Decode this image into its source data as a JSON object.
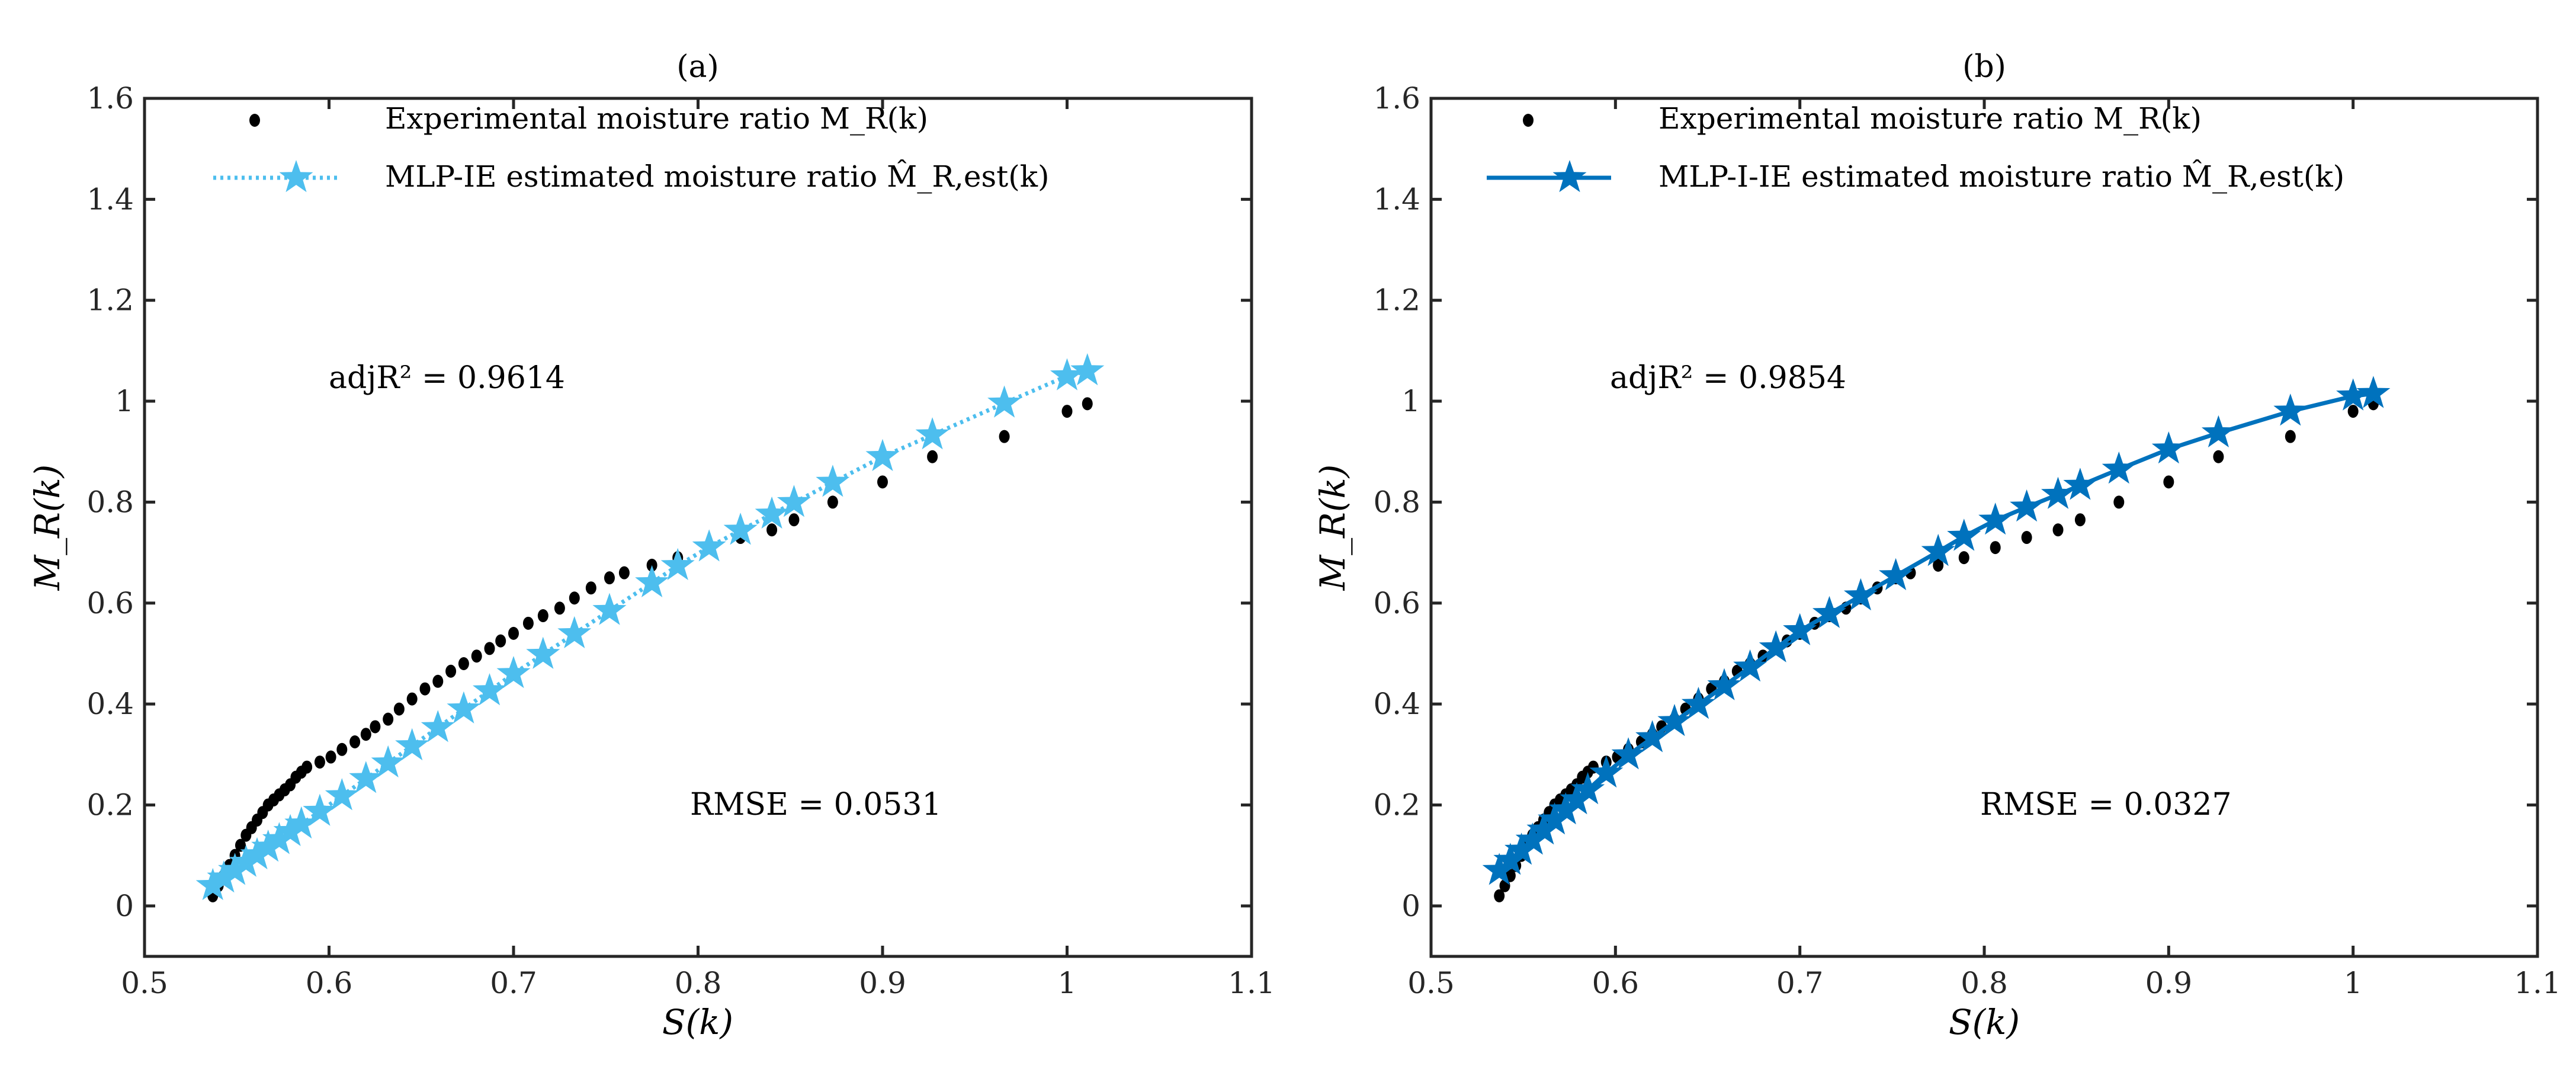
{
  "chart_data": [
    {
      "type": "scatter",
      "title": "(a)",
      "xlabel": "S(k)",
      "ylabel": "M_R(k)",
      "xlim": [
        0.5,
        1.1
      ],
      "ylim": [
        -0.1,
        1.6
      ],
      "xticks": [
        "0.5",
        "0.6",
        "0.7",
        "0.8",
        "0.9",
        "1",
        "1.1"
      ],
      "yticks": [
        "0",
        "0.2",
        "0.4",
        "0.6",
        "0.8",
        "1",
        "1.2",
        "1.4",
        "1.6"
      ],
      "grid": false,
      "legend_position": "top",
      "annotations": {
        "adj": "adjR² = 0.9614",
        "rmse": "RMSE = 0.0531"
      },
      "series": [
        {
          "name": "Experimental moisture ratio M_R(k)",
          "style": "dots",
          "color": "#000000",
          "x": [
            0.537,
            0.54,
            0.543,
            0.546,
            0.549,
            0.552,
            0.555,
            0.558,
            0.561,
            0.564,
            0.567,
            0.57,
            0.573,
            0.576,
            0.579,
            0.582,
            0.585,
            0.588,
            0.595,
            0.601,
            0.607,
            0.614,
            0.62,
            0.625,
            0.632,
            0.638,
            0.645,
            0.652,
            0.659,
            0.666,
            0.673,
            0.68,
            0.687,
            0.693,
            0.7,
            0.708,
            0.716,
            0.725,
            0.733,
            0.742,
            0.752,
            0.76,
            0.775,
            0.789,
            0.806,
            0.823,
            0.84,
            0.852,
            0.873,
            0.9,
            0.927,
            0.966,
            1.0,
            1.011
          ],
          "y": [
            0.02,
            0.04,
            0.06,
            0.08,
            0.1,
            0.12,
            0.14,
            0.155,
            0.17,
            0.185,
            0.2,
            0.21,
            0.22,
            0.23,
            0.24,
            0.255,
            0.265,
            0.275,
            0.285,
            0.295,
            0.31,
            0.325,
            0.34,
            0.355,
            0.37,
            0.39,
            0.41,
            0.43,
            0.445,
            0.465,
            0.48,
            0.495,
            0.51,
            0.525,
            0.54,
            0.56,
            0.575,
            0.59,
            0.61,
            0.63,
            0.65,
            0.66,
            0.675,
            0.69,
            0.71,
            0.73,
            0.745,
            0.765,
            0.8,
            0.84,
            0.89,
            0.93,
            0.98,
            0.995
          ]
        },
        {
          "name": "MLP-IE estimated moisture ratio M̂_R,est(k)",
          "style": "dotted-star",
          "color": "#4DBEEE",
          "x": [
            0.537,
            0.543,
            0.549,
            0.555,
            0.561,
            0.567,
            0.573,
            0.579,
            0.585,
            0.595,
            0.607,
            0.62,
            0.632,
            0.645,
            0.659,
            0.673,
            0.687,
            0.7,
            0.716,
            0.733,
            0.752,
            0.775,
            0.789,
            0.806,
            0.823,
            0.84,
            0.852,
            0.873,
            0.9,
            0.927,
            0.966,
            1.0,
            1.011
          ],
          "y": [
            0.04,
            0.055,
            0.07,
            0.086,
            0.101,
            0.116,
            0.131,
            0.147,
            0.162,
            0.187,
            0.218,
            0.252,
            0.283,
            0.317,
            0.353,
            0.39,
            0.426,
            0.46,
            0.498,
            0.539,
            0.585,
            0.64,
            0.674,
            0.711,
            0.744,
            0.776,
            0.799,
            0.839,
            0.89,
            0.933,
            0.996,
            1.05,
            1.06
          ]
        }
      ]
    },
    {
      "type": "scatter",
      "title": "(b)",
      "xlabel": "S(k)",
      "ylabel": "M_R(k)",
      "xlim": [
        0.5,
        1.1
      ],
      "ylim": [
        -0.1,
        1.6
      ],
      "xticks": [
        "0.5",
        "0.6",
        "0.7",
        "0.8",
        "0.9",
        "1",
        "1.1"
      ],
      "yticks": [
        "0",
        "0.2",
        "0.4",
        "0.6",
        "0.8",
        "1",
        "1.2",
        "1.4",
        "1.6"
      ],
      "grid": false,
      "legend_position": "top",
      "annotations": {
        "adj": "adjR² = 0.9854",
        "rmse": "RMSE = 0.0327"
      },
      "series": [
        {
          "name": "Experimental moisture ratio M_R(k)",
          "style": "dots",
          "color": "#000000",
          "x": [
            0.537,
            0.54,
            0.543,
            0.546,
            0.549,
            0.552,
            0.555,
            0.558,
            0.561,
            0.564,
            0.567,
            0.57,
            0.573,
            0.576,
            0.579,
            0.582,
            0.585,
            0.588,
            0.595,
            0.601,
            0.607,
            0.614,
            0.62,
            0.625,
            0.632,
            0.638,
            0.645,
            0.652,
            0.659,
            0.666,
            0.673,
            0.68,
            0.687,
            0.693,
            0.7,
            0.708,
            0.716,
            0.725,
            0.733,
            0.742,
            0.752,
            0.76,
            0.775,
            0.789,
            0.806,
            0.823,
            0.84,
            0.852,
            0.873,
            0.9,
            0.927,
            0.966,
            1.0,
            1.011
          ],
          "y": [
            0.02,
            0.04,
            0.06,
            0.08,
            0.1,
            0.12,
            0.14,
            0.155,
            0.17,
            0.185,
            0.2,
            0.21,
            0.22,
            0.23,
            0.24,
            0.255,
            0.265,
            0.275,
            0.285,
            0.295,
            0.31,
            0.325,
            0.34,
            0.355,
            0.37,
            0.39,
            0.41,
            0.43,
            0.445,
            0.465,
            0.48,
            0.495,
            0.51,
            0.525,
            0.54,
            0.56,
            0.575,
            0.59,
            0.61,
            0.63,
            0.65,
            0.66,
            0.675,
            0.69,
            0.71,
            0.73,
            0.745,
            0.765,
            0.8,
            0.84,
            0.89,
            0.93,
            0.98,
            0.995
          ]
        },
        {
          "name": "MLP-I-IE estimated moisture ratio M̂_R,est(k)",
          "style": "solid-star",
          "color": "#0072BD",
          "x": [
            0.537,
            0.543,
            0.549,
            0.555,
            0.561,
            0.567,
            0.573,
            0.579,
            0.585,
            0.595,
            0.607,
            0.62,
            0.632,
            0.645,
            0.659,
            0.673,
            0.687,
            0.7,
            0.716,
            0.733,
            0.752,
            0.775,
            0.789,
            0.806,
            0.823,
            0.84,
            0.852,
            0.873,
            0.9,
            0.927,
            0.966,
            1.0,
            1.011
          ],
          "y": [
            0.07,
            0.09,
            0.11,
            0.13,
            0.15,
            0.17,
            0.19,
            0.21,
            0.23,
            0.263,
            0.299,
            0.333,
            0.365,
            0.399,
            0.436,
            0.473,
            0.511,
            0.545,
            0.579,
            0.614,
            0.654,
            0.702,
            0.732,
            0.764,
            0.79,
            0.815,
            0.833,
            0.865,
            0.905,
            0.937,
            0.98,
            1.01,
            1.015
          ]
        }
      ]
    }
  ]
}
